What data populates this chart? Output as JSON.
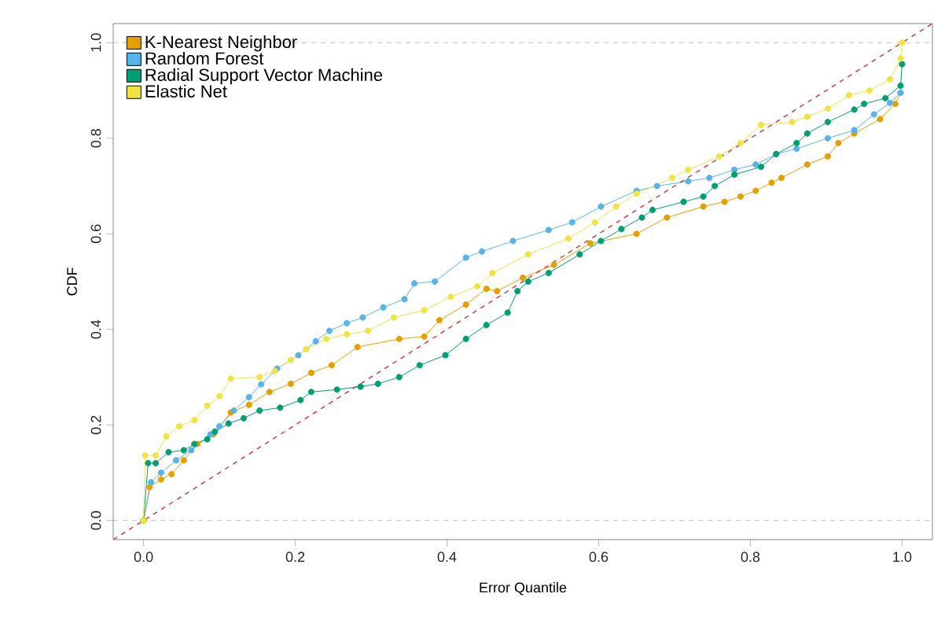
{
  "chart_data": {
    "type": "line",
    "xlabel": "Error Quantile",
    "ylabel": "CDF",
    "xlim": [
      -0.04,
      1.04
    ],
    "ylim": [
      -0.04,
      1.04
    ],
    "xticks": [
      {
        "value": 0,
        "label": "0.0"
      },
      {
        "value": 0.2,
        "label": "0.2"
      },
      {
        "value": 0.4,
        "label": "0.4"
      },
      {
        "value": 0.6,
        "label": "0.6"
      },
      {
        "value": 0.8,
        "label": "0.8"
      },
      {
        "value": 1,
        "label": "1.0"
      }
    ],
    "yticks": [
      {
        "value": 0,
        "label": "0.0"
      },
      {
        "value": 0.2,
        "label": "0.2"
      },
      {
        "value": 0.4,
        "label": "0.4"
      },
      {
        "value": 0.6,
        "label": "0.6"
      },
      {
        "value": 0.8,
        "label": "0.8"
      },
      {
        "value": 1,
        "label": "1.0"
      }
    ],
    "grid": false,
    "legend": "top left",
    "marker": "circle",
    "line_style": "solid",
    "ref_lines": [
      {
        "axis": "y",
        "value": 0,
        "color": "#cccccc",
        "line_style": "dashed"
      },
      {
        "axis": "y",
        "value": 1,
        "color": "#cccccc",
        "line_style": "dashed"
      }
    ],
    "series": [
      {
        "name": "K-Nearest Neighbor",
        "color": "#e69f00",
        "x": [
          0,
          0.008,
          0.023,
          0.037,
          0.053,
          0.071,
          0.092,
          0.115,
          0.139,
          0.166,
          0.194,
          0.221,
          0.248,
          0.282,
          0.337,
          0.37,
          0.39,
          0.425,
          0.452,
          0.466,
          0.5,
          0.541,
          0.589,
          0.65,
          0.69,
          0.738,
          0.766,
          0.787,
          0.807,
          0.828,
          0.841,
          0.875,
          0.902,
          0.916,
          0.937,
          0.971,
          0.991,
          0.998
        ],
        "values": [
          0,
          0.07,
          0.086,
          0.097,
          0.126,
          0.16,
          0.18,
          0.226,
          0.242,
          0.269,
          0.286,
          0.309,
          0.325,
          0.363,
          0.38,
          0.385,
          0.419,
          0.452,
          0.485,
          0.48,
          0.508,
          0.535,
          0.58,
          0.6,
          0.634,
          0.657,
          0.667,
          0.678,
          0.69,
          0.707,
          0.717,
          0.745,
          0.762,
          0.79,
          0.81,
          0.84,
          0.872,
          0.895
        ]
      },
      {
        "name": "Random Forest",
        "color": "#56b4e9",
        "x": [
          0,
          0.01,
          0.023,
          0.043,
          0.063,
          0.088,
          0.1,
          0.119,
          0.139,
          0.155,
          0.176,
          0.204,
          0.227,
          0.245,
          0.268,
          0.289,
          0.316,
          0.344,
          0.357,
          0.384,
          0.425,
          0.446,
          0.487,
          0.534,
          0.565,
          0.603,
          0.65,
          0.677,
          0.718,
          0.746,
          0.779,
          0.807,
          0.834,
          0.861,
          0.902,
          0.937,
          0.963,
          0.984,
          0.998
        ],
        "values": [
          0,
          0.08,
          0.1,
          0.126,
          0.147,
          0.18,
          0.197,
          0.23,
          0.258,
          0.285,
          0.318,
          0.346,
          0.375,
          0.397,
          0.413,
          0.425,
          0.446,
          0.463,
          0.496,
          0.5,
          0.55,
          0.563,
          0.585,
          0.608,
          0.624,
          0.657,
          0.69,
          0.7,
          0.71,
          0.717,
          0.734,
          0.745,
          0.767,
          0.778,
          0.8,
          0.817,
          0.85,
          0.874,
          0.895
        ]
      },
      {
        "name": "Radial Support Vector Machine",
        "color": "#009e73",
        "x": [
          0,
          0.006,
          0.016,
          0.033,
          0.053,
          0.067,
          0.084,
          0.094,
          0.112,
          0.132,
          0.153,
          0.18,
          0.207,
          0.221,
          0.255,
          0.286,
          0.309,
          0.337,
          0.364,
          0.398,
          0.425,
          0.452,
          0.48,
          0.493,
          0.507,
          0.534,
          0.575,
          0.603,
          0.63,
          0.657,
          0.671,
          0.712,
          0.738,
          0.753,
          0.779,
          0.814,
          0.834,
          0.861,
          0.875,
          0.902,
          0.937,
          0.95,
          0.978,
          0.998,
          1.0
        ],
        "values": [
          0,
          0.12,
          0.12,
          0.143,
          0.147,
          0.16,
          0.17,
          0.186,
          0.203,
          0.214,
          0.23,
          0.236,
          0.252,
          0.269,
          0.274,
          0.28,
          0.286,
          0.3,
          0.325,
          0.346,
          0.38,
          0.409,
          0.435,
          0.48,
          0.5,
          0.518,
          0.557,
          0.585,
          0.61,
          0.634,
          0.65,
          0.667,
          0.678,
          0.7,
          0.724,
          0.74,
          0.767,
          0.79,
          0.81,
          0.834,
          0.86,
          0.872,
          0.884,
          0.91,
          0.955
        ]
      },
      {
        "name": "Elastic Net",
        "color": "#f0e442",
        "x": [
          0,
          0.002,
          0.016,
          0.03,
          0.047,
          0.067,
          0.084,
          0.1,
          0.115,
          0.153,
          0.173,
          0.194,
          0.214,
          0.241,
          0.268,
          0.296,
          0.33,
          0.37,
          0.405,
          0.44,
          0.46,
          0.507,
          0.56,
          0.595,
          0.623,
          0.65,
          0.697,
          0.718,
          0.759,
          0.787,
          0.814,
          0.855,
          0.875,
          0.902,
          0.93,
          0.957,
          0.984,
          0.998,
          1.0
        ],
        "values": [
          0,
          0.136,
          0.136,
          0.176,
          0.197,
          0.21,
          0.24,
          0.26,
          0.297,
          0.3,
          0.313,
          0.336,
          0.358,
          0.38,
          0.39,
          0.397,
          0.425,
          0.44,
          0.468,
          0.49,
          0.518,
          0.557,
          0.59,
          0.624,
          0.657,
          0.684,
          0.717,
          0.734,
          0.762,
          0.79,
          0.828,
          0.834,
          0.845,
          0.862,
          0.89,
          0.9,
          0.923,
          0.967,
          1.0
        ]
      },
      {
        "type": "line",
        "color": "#cc3333",
        "line_style": "dashed",
        "marker": "none",
        "x": [
          -0.04,
          1.04
        ],
        "values": [
          -0.04,
          1.04
        ]
      }
    ]
  }
}
